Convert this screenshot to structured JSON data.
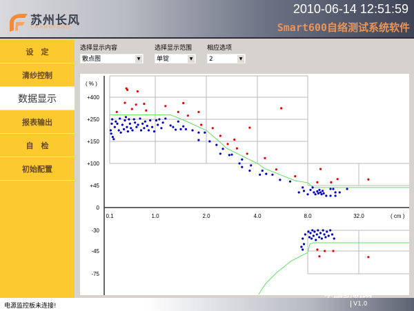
{
  "header": {
    "logo_cn": "苏州长风",
    "logo_en": "CHANGFENG",
    "datetime": "2010-06-14 12:51:59",
    "app_title": "Smart600自络测试系统软件"
  },
  "sidebar": {
    "items": [
      {
        "label": "设　定",
        "active": false
      },
      {
        "label": "清纱控制",
        "active": false
      },
      {
        "label": "数据显示",
        "active": true
      },
      {
        "label": "报表输出",
        "active": false
      },
      {
        "label": "自　检",
        "active": false
      },
      {
        "label": "初始配置",
        "active": false
      }
    ]
  },
  "controls": {
    "content_label": "选择显示内容",
    "content_value": "散点图",
    "range_label": "选择显示范围",
    "range_value": "单锭",
    "option_label": "相应选项",
    "option_value": "2"
  },
  "status": {
    "message": "电源监控板未连接!",
    "version": "V1.0"
  },
  "watermark": {
    "line1": "TTMN.COM",
    "line2": "中国纺机网"
  },
  "colors": {
    "sidebar": "#fcca2e",
    "active_item": "#ffffff",
    "series_blue": "#0000c0",
    "series_red": "#e00000",
    "curve": "#66dd66"
  },
  "chart_data": {
    "type": "scatter",
    "xlabel": "( cm )",
    "ylabel": "( % )",
    "x_ticks": [
      "0.1",
      "1.0",
      "2.0",
      "4.0",
      "8.0",
      "32.0"
    ],
    "y_ticks_upper": [
      "+400",
      "+250",
      "+150",
      "+100",
      "+45",
      "0"
    ],
    "y_ticks_lower": [
      "-30",
      "-45",
      "-75"
    ],
    "grid": true,
    "upper": {
      "curve": [
        [
          0.1,
          280
        ],
        [
          1.3,
          280
        ],
        [
          1.52,
          250
        ],
        [
          2.0,
          200
        ],
        [
          2.5,
          150
        ],
        [
          2.8,
          134
        ],
        [
          4.0,
          100
        ],
        [
          4.6,
          87
        ],
        [
          7.0,
          57
        ],
        [
          8.0,
          52
        ],
        [
          10.6,
          41
        ],
        [
          64,
          41
        ]
      ],
      "blue": [
        [
          0.12,
          200
        ],
        [
          0.13,
          185
        ],
        [
          0.14,
          230
        ],
        [
          0.15,
          250
        ],
        [
          0.16,
          170
        ],
        [
          0.18,
          160
        ],
        [
          0.2,
          215
        ],
        [
          0.22,
          240
        ],
        [
          0.25,
          230
        ],
        [
          0.28,
          200
        ],
        [
          0.3,
          255
        ],
        [
          0.32,
          190
        ],
        [
          0.35,
          225
        ],
        [
          0.38,
          205
        ],
        [
          0.4,
          245
        ],
        [
          0.42,
          265
        ],
        [
          0.44,
          215
        ],
        [
          0.46,
          195
        ],
        [
          0.48,
          250
        ],
        [
          0.5,
          230
        ],
        [
          0.52,
          210
        ],
        [
          0.55,
          200
        ],
        [
          0.58,
          250
        ],
        [
          0.6,
          235
        ],
        [
          0.63,
          215
        ],
        [
          0.66,
          225
        ],
        [
          0.7,
          255
        ],
        [
          0.72,
          200
        ],
        [
          0.75,
          230
        ],
        [
          0.78,
          210
        ],
        [
          0.8,
          240
        ],
        [
          0.84,
          220
        ],
        [
          0.87,
          200
        ],
        [
          0.9,
          245
        ],
        [
          0.94,
          215
        ],
        [
          0.98,
          195
        ],
        [
          1.02,
          245
        ],
        [
          1.05,
          225
        ],
        [
          1.08,
          250
        ],
        [
          1.12,
          210
        ],
        [
          1.15,
          235
        ],
        [
          1.2,
          255
        ],
        [
          1.3,
          222
        ],
        [
          1.35,
          215
        ],
        [
          1.4,
          203
        ],
        [
          1.45,
          240
        ],
        [
          1.5,
          205
        ],
        [
          1.55,
          218
        ],
        [
          1.6,
          205
        ],
        [
          1.73,
          200
        ],
        [
          1.85,
          190
        ],
        [
          1.85,
          156
        ],
        [
          1.97,
          190
        ],
        [
          2.13,
          150
        ],
        [
          2.4,
          142
        ],
        [
          2.55,
          122
        ],
        [
          2.65,
          133
        ],
        [
          2.9,
          119
        ],
        [
          3.0,
          120
        ],
        [
          3.3,
          100
        ],
        [
          3.4,
          109
        ],
        [
          3.4,
          91
        ],
        [
          3.7,
          82
        ],
        [
          3.75,
          95
        ],
        [
          4.2,
          72
        ],
        [
          4.4,
          82
        ],
        [
          4.7,
          74
        ],
        [
          5.2,
          72
        ],
        [
          5.8,
          59
        ],
        [
          6.6,
          55
        ],
        [
          7.3,
          31
        ],
        [
          7.6,
          41
        ],
        [
          7.7,
          34
        ],
        [
          8.0,
          27
        ],
        [
          9.3,
          36
        ],
        [
          10.3,
          41
        ],
        [
          10.9,
          31
        ],
        [
          11.6,
          27
        ],
        [
          12.5,
          33
        ],
        [
          13,
          29
        ],
        [
          13.5,
          36
        ],
        [
          14,
          31
        ],
        [
          14.5,
          27
        ],
        [
          15,
          34
        ],
        [
          15.5,
          29
        ],
        [
          16.7,
          24
        ],
        [
          18.7,
          38
        ],
        [
          18.7,
          24
        ],
        [
          20,
          38
        ],
        [
          21,
          24
        ],
        [
          21,
          31
        ],
        [
          23,
          31
        ],
        [
          26.5,
          38
        ]
      ],
      "red": [
        [
          0.24,
          300
        ],
        [
          0.4,
          362
        ],
        [
          0.43,
          460
        ],
        [
          0.45,
          450
        ],
        [
          0.65,
          440
        ],
        [
          0.62,
          350
        ],
        [
          0.54,
          320
        ],
        [
          0.78,
          355
        ],
        [
          0.82,
          310
        ],
        [
          1.2,
          340
        ],
        [
          1.45,
          300
        ],
        [
          1.55,
          360
        ],
        [
          1.64,
          275
        ],
        [
          1.85,
          300
        ],
        [
          1.9,
          225
        ],
        [
          2.25,
          210
        ],
        [
          2.55,
          175
        ],
        [
          2.84,
          144
        ],
        [
          3.1,
          158
        ],
        [
          3.2,
          134
        ],
        [
          3.6,
          122
        ],
        [
          3.7,
          212
        ],
        [
          4.6,
          112
        ],
        [
          5.5,
          85
        ],
        [
          5.9,
          325
        ],
        [
          7.0,
          68
        ],
        [
          12.5,
          53
        ],
        [
          14,
          86
        ],
        [
          19,
          53
        ],
        [
          22,
          61
        ],
        [
          38,
          60
        ]
      ]
    },
    "lower": {
      "curve": [
        [
          4.1,
          -104
        ],
        [
          4.65,
          -89
        ],
        [
          5.5,
          -74
        ],
        [
          6.7,
          -58
        ],
        [
          8.0,
          -47
        ],
        [
          9.0,
          -40
        ],
        [
          10.6,
          -39
        ],
        [
          64,
          -39
        ]
      ],
      "blue": [
        [
          7.6,
          -36
        ],
        [
          7.7,
          -40
        ],
        [
          7.8,
          -33
        ],
        [
          8.3,
          -31
        ],
        [
          8.8,
          -35
        ],
        [
          9.3,
          -32
        ],
        [
          9.8,
          -36
        ],
        [
          10.2,
          -30
        ],
        [
          10.7,
          -34
        ],
        [
          11.2,
          -31
        ],
        [
          11.8,
          -37
        ],
        [
          12.3,
          -33
        ],
        [
          12.8,
          -30
        ],
        [
          13.4,
          -35
        ],
        [
          14,
          -32
        ],
        [
          14.6,
          -36
        ],
        [
          15.2,
          -30
        ],
        [
          15.8,
          -33
        ],
        [
          16.4,
          -35
        ],
        [
          17,
          -31
        ],
        [
          17.8,
          -34
        ],
        [
          18.6,
          -30
        ],
        [
          19.5,
          -33
        ],
        [
          20.4,
          -36
        ],
        [
          7.5,
          -42
        ],
        [
          7.6,
          -44
        ]
      ],
      "red": [
        [
          12.5,
          -44
        ],
        [
          13.5,
          -52
        ],
        [
          16,
          -45
        ],
        [
          20,
          -45
        ],
        [
          38,
          -53
        ]
      ]
    }
  }
}
